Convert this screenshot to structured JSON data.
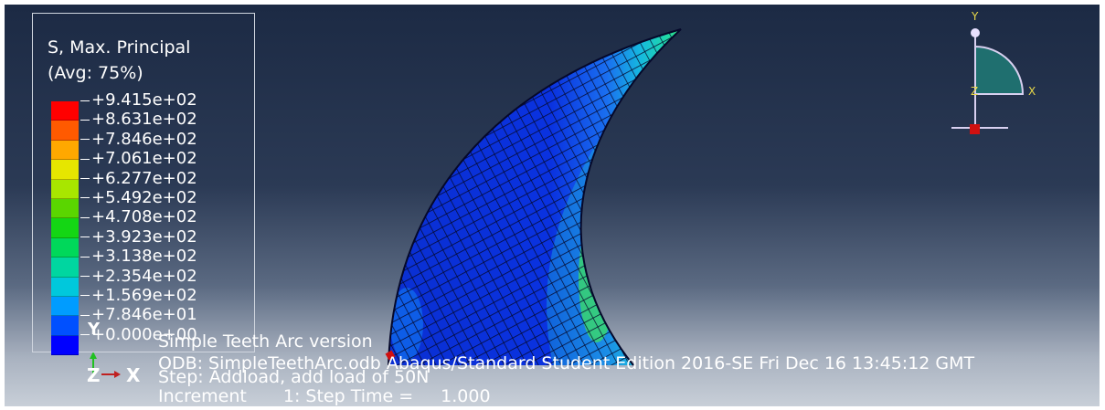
{
  "legend": {
    "title": "S, Max. Principal",
    "averaging": "(Avg: 75%)",
    "ticks": [
      "+9.415e+02",
      "+8.631e+02",
      "+7.846e+02",
      "+7.061e+02",
      "+6.277e+02",
      "+5.492e+02",
      "+4.708e+02",
      "+3.923e+02",
      "+3.138e+02",
      "+2.354e+02",
      "+1.569e+02",
      "+7.846e+01",
      "+0.000e+00"
    ],
    "colors": [
      "#ff0000",
      "#ff5a00",
      "#ffa800",
      "#e6e600",
      "#a8e600",
      "#5ad600",
      "#14d614",
      "#00d85a",
      "#00d6a0",
      "#00c8dc",
      "#009cff",
      "#0050ff",
      "#0000ff"
    ],
    "bottom_marker": "Y"
  },
  "info": {
    "title": "Simple Teeth Arc version",
    "odb": "ODB: SimpleTeethArc.odb    Abaqus/Standard Student Edition 2016-SE    Fri Dec 16 13:45:12 GMT",
    "step": "Step: Addload, add load of 50N",
    "increment_label": "Increment",
    "increment_value": "1: Step Time =",
    "step_time": "1.000"
  },
  "triad": {
    "z": "Z",
    "x": "X"
  },
  "view_cube": {
    "y": "Y",
    "x": "X",
    "z": "Z",
    "fill": "#1f6f6f"
  }
}
